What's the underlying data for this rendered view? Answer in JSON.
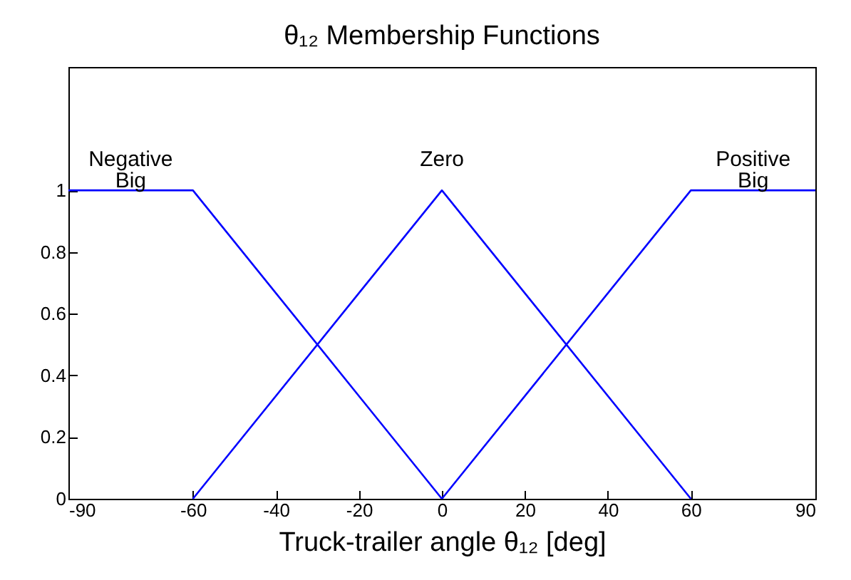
{
  "chart_data": {
    "type": "line",
    "title": "θ₁₂ Membership Functions",
    "xlabel": "Truck-trailer angle θ₁₂  [deg]",
    "xlim": [
      -90,
      90
    ],
    "xticks": [
      -90,
      -60,
      -40,
      -20,
      0,
      20,
      40,
      60,
      90
    ],
    "ylim": [
      0,
      1.4
    ],
    "yticks": [
      0,
      0.2,
      0.4,
      0.6,
      0.8,
      1
    ],
    "grid": false,
    "legend": false,
    "marker": "none",
    "line_style": "solid",
    "series": [
      {
        "name": "Negative Big",
        "color": "#0000ff",
        "x": [
          -90,
          -60,
          0
        ],
        "values": [
          1,
          1,
          0
        ]
      },
      {
        "name": "Zero",
        "color": "#0000ff",
        "x": [
          -60,
          0,
          60
        ],
        "values": [
          0,
          1,
          0
        ]
      },
      {
        "name": "Positive Big",
        "color": "#0000ff",
        "x": [
          0,
          60,
          90
        ],
        "values": [
          0,
          1,
          1
        ]
      }
    ]
  }
}
